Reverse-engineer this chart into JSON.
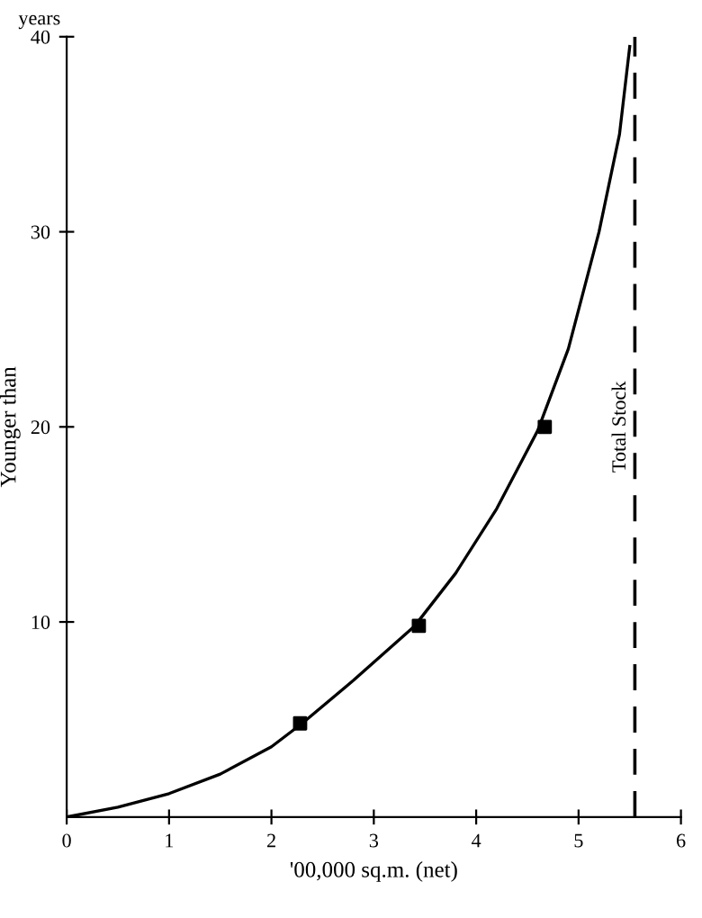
{
  "chart_data": {
    "type": "line",
    "xlabel": "'00,000 sq.m. (net)",
    "ylabel": "Younger than",
    "annotations": [
      "years"
    ],
    "xlim": [
      0,
      6
    ],
    "ylim": [
      0,
      40
    ],
    "xticks": [
      0,
      1,
      2,
      3,
      4,
      5,
      6
    ],
    "yticks": [
      10,
      20,
      30,
      40
    ],
    "grid": false,
    "legend": false,
    "series": [
      {
        "type": "line",
        "color": "#000000",
        "marker": "none",
        "line_style": "solid",
        "x": [
          0,
          0.5,
          1,
          1.5,
          2,
          2.3,
          2.8,
          3.4,
          3.8,
          4.2,
          4.6,
          4.9,
          5.2,
          5.4,
          5.5
        ],
        "values": [
          0,
          0.5,
          1.2,
          2.2,
          3.6,
          4.8,
          7,
          9.8,
          12.5,
          15.8,
          19.8,
          24,
          30,
          35,
          39.5
        ]
      },
      {
        "type": "scatter",
        "color": "#000000",
        "marker": "square",
        "x": [
          2.28,
          3.44,
          4.67
        ],
        "values": [
          4.8,
          9.8,
          20
        ]
      }
    ],
    "ref_lines": [
      {
        "axis": "x",
        "value": 5.55,
        "label": "Total Stock",
        "line_style": "dashed",
        "color": "#000000"
      }
    ]
  }
}
